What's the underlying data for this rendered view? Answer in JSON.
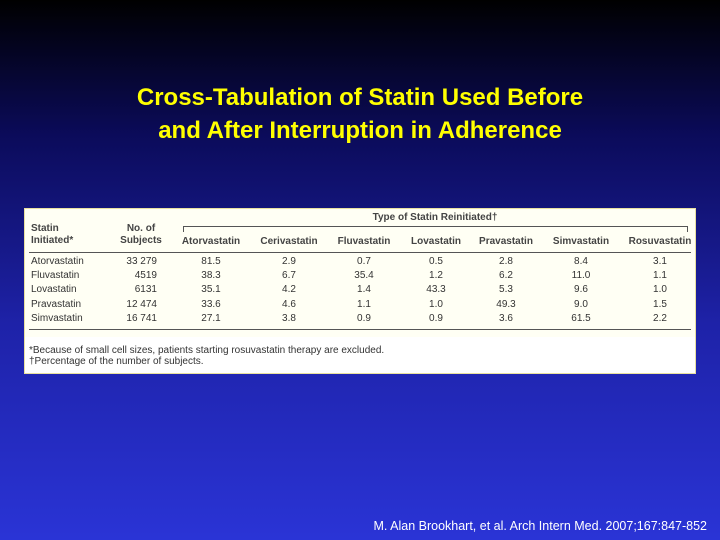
{
  "slide": {
    "title": [
      "Cross-Tabulation of Statin Used Before",
      "and After Interruption in Adherence"
    ],
    "table": {
      "group_header": "Type of Statin Reinitiated†",
      "columns": [
        "Statin Initiated*",
        "No. of Subjects",
        "Atorvastatin",
        "Cerivastatin",
        "Fluvastatin",
        "Lovastatin",
        "Pravastatin",
        "Simvastatin",
        "Rosuvastatin"
      ],
      "rows": [
        [
          "Atorvastatin",
          "33 279",
          "81.5",
          "2.9",
          "0.7",
          "0.5",
          "2.8",
          "8.4",
          "3.1"
        ],
        [
          "Fluvastatin",
          "4519",
          "38.3",
          "6.7",
          "35.4",
          "1.2",
          "6.2",
          "11.0",
          "1.1"
        ],
        [
          "Lovastatin",
          "6131",
          "35.1",
          "4.2",
          "1.4",
          "43.3",
          "5.3",
          "9.6",
          "1.0"
        ],
        [
          "Pravastatin",
          "12 474",
          "33.6",
          "4.6",
          "1.1",
          "1.0",
          "49.3",
          "9.0",
          "1.5"
        ],
        [
          "Simvastatin",
          "16 741",
          "27.1",
          "3.8",
          "0.9",
          "0.9",
          "3.6",
          "61.5",
          "2.2"
        ]
      ],
      "footnotes": [
        "*Because of small cell sizes, patients starting rosuvastatin therapy are excluded.",
        "†Percentage of the number of subjects."
      ]
    },
    "citation": "M. Alan Brookhart, et al. Arch Intern Med. 2007;167:847-852"
  }
}
